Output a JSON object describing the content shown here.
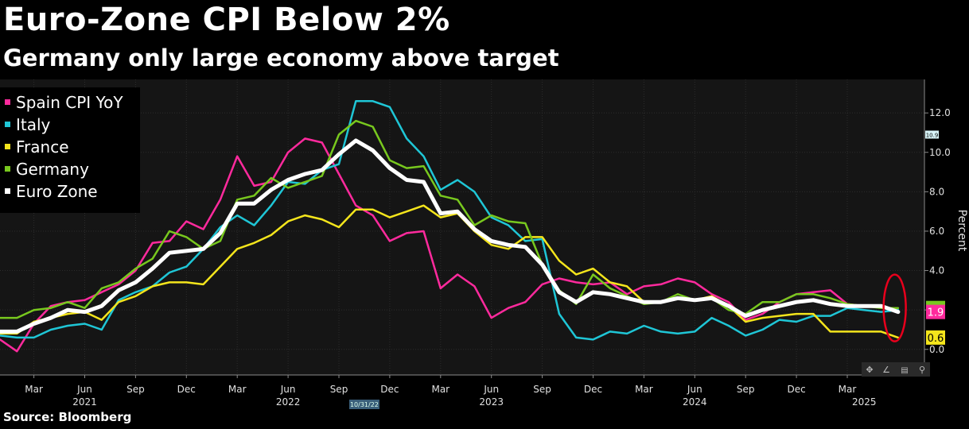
{
  "title": "Euro-Zone CPI Below 2%",
  "subtitle": "Germany only large economy above target",
  "source": "Source: Bloomberg",
  "chart_data": {
    "type": "line",
    "ylabel": "Percent",
    "ylim": [
      -1.3,
      13.7
    ],
    "y_ticks": [
      0.0,
      2.0,
      4.0,
      6.0,
      8.0,
      10.0,
      12.0
    ],
    "y_tick_labels": [
      "0.0",
      "",
      "4.0",
      "6.0",
      "8.0",
      "10.0",
      "12.0"
    ],
    "x_start_month": "Jan 2021",
    "x_month_count": 54,
    "x_tick_labels": [
      {
        "label": "Mar",
        "month_index": 2
      },
      {
        "label": "Jun",
        "month_index": 5
      },
      {
        "label": "Sep",
        "month_index": 8
      },
      {
        "label": "Dec",
        "month_index": 11
      },
      {
        "label": "Mar",
        "month_index": 14
      },
      {
        "label": "Jun",
        "month_index": 17
      },
      {
        "label": "Sep",
        "month_index": 20
      },
      {
        "label": "Dec",
        "month_index": 23
      },
      {
        "label": "Mar",
        "month_index": 26
      },
      {
        "label": "Jun",
        "month_index": 29
      },
      {
        "label": "Sep",
        "month_index": 32
      },
      {
        "label": "Dec",
        "month_index": 35
      },
      {
        "label": "Mar",
        "month_index": 38
      },
      {
        "label": "Jun",
        "month_index": 41
      },
      {
        "label": "Sep",
        "month_index": 44
      },
      {
        "label": "Dec",
        "month_index": 47
      },
      {
        "label": "Mar",
        "month_index": 50
      }
    ],
    "year_labels": [
      {
        "label": "2021",
        "month_index": 5
      },
      {
        "label": "2022",
        "month_index": 17
      },
      {
        "label": "2023",
        "month_index": 29
      },
      {
        "label": "2024",
        "month_index": 41
      },
      {
        "label": "2025",
        "month_index": 51
      }
    ],
    "date_badge": {
      "label": "10/31/22",
      "month_index": 21.5
    },
    "legend_position": "top-left",
    "grid": true,
    "series": [
      {
        "name": "Spain CPI YoY",
        "color": "#ff2a9d",
        "width": 2.5,
        "values": [
          0.5,
          -0.1,
          1.3,
          2.2,
          2.4,
          2.5,
          2.9,
          3.3,
          4.0,
          5.4,
          5.5,
          6.5,
          6.1,
          7.6,
          9.8,
          8.3,
          8.5,
          10.0,
          10.7,
          10.5,
          8.9,
          7.3,
          6.8,
          5.5,
          5.9,
          6.0,
          3.1,
          3.8,
          3.2,
          1.6,
          2.1,
          2.4,
          3.3,
          3.6,
          3.4,
          3.3,
          3.4,
          2.8,
          3.2,
          3.3,
          3.6,
          3.4,
          2.8,
          2.4,
          1.5,
          1.8,
          2.4,
          2.8,
          2.9,
          3.0,
          2.3,
          2.2,
          2.2,
          1.9
        ]
      },
      {
        "name": "Italy",
        "color": "#1fc6d6",
        "width": 2.5,
        "values": [
          0.7,
          0.6,
          0.6,
          1.0,
          1.2,
          1.3,
          1.0,
          2.5,
          2.9,
          3.2,
          3.9,
          4.2,
          5.1,
          6.2,
          6.8,
          6.3,
          7.3,
          8.5,
          8.4,
          9.1,
          9.4,
          12.6,
          12.6,
          12.3,
          10.7,
          9.8,
          8.1,
          8.6,
          8.0,
          6.7,
          6.3,
          5.5,
          5.6,
          1.8,
          0.6,
          0.5,
          0.9,
          0.8,
          1.2,
          0.9,
          0.8,
          0.9,
          1.6,
          1.2,
          0.7,
          1.0,
          1.5,
          1.4,
          1.7,
          1.7,
          2.1,
          2.0,
          1.9,
          2.0
        ]
      },
      {
        "name": "France",
        "color": "#f4e51c",
        "width": 2.5,
        "values": [
          0.8,
          0.8,
          1.4,
          1.6,
          1.8,
          1.9,
          1.5,
          2.4,
          2.7,
          3.2,
          3.4,
          3.4,
          3.3,
          4.2,
          5.1,
          5.4,
          5.8,
          6.5,
          6.8,
          6.6,
          6.2,
          7.1,
          7.1,
          6.7,
          7.0,
          7.3,
          6.7,
          6.9,
          6.0,
          5.3,
          5.1,
          5.7,
          5.7,
          4.5,
          3.8,
          4.1,
          3.4,
          3.2,
          2.4,
          2.4,
          2.6,
          2.5,
          2.7,
          2.2,
          1.4,
          1.6,
          1.7,
          1.8,
          1.8,
          0.9,
          0.9,
          0.9,
          0.9,
          0.6
        ]
      },
      {
        "name": "Germany",
        "color": "#78c81e",
        "width": 2.5,
        "values": [
          1.6,
          1.6,
          2.0,
          2.1,
          2.4,
          2.1,
          3.1,
          3.4,
          4.1,
          4.6,
          6.0,
          5.7,
          5.1,
          5.5,
          7.6,
          7.8,
          8.7,
          8.2,
          8.5,
          8.8,
          10.9,
          11.6,
          11.3,
          9.6,
          9.2,
          9.3,
          7.8,
          7.6,
          6.3,
          6.8,
          6.5,
          6.4,
          4.3,
          3.0,
          2.3,
          3.8,
          3.1,
          2.7,
          2.3,
          2.4,
          2.8,
          2.5,
          2.6,
          2.0,
          1.8,
          2.4,
          2.4,
          2.8,
          2.8,
          2.6,
          2.3,
          2.2,
          2.1,
          2.1
        ]
      },
      {
        "name": "Euro Zone",
        "color": "#ffffff",
        "width": 5,
        "values": [
          0.9,
          0.9,
          1.3,
          1.6,
          2.0,
          1.9,
          2.2,
          3.0,
          3.4,
          4.1,
          4.9,
          5.0,
          5.1,
          5.9,
          7.4,
          7.4,
          8.1,
          8.6,
          8.9,
          9.1,
          9.9,
          10.6,
          10.1,
          9.2,
          8.6,
          8.5,
          6.9,
          7.0,
          6.1,
          5.5,
          5.3,
          5.2,
          4.3,
          2.9,
          2.4,
          2.9,
          2.8,
          2.6,
          2.4,
          2.4,
          2.6,
          2.5,
          2.6,
          2.2,
          1.7,
          2.0,
          2.2,
          2.4,
          2.5,
          2.3,
          2.2,
          2.2,
          2.2,
          1.9
        ]
      }
    ],
    "end_labels": [
      {
        "text": "2.1",
        "color": "#78c81e",
        "text_color": "#78c81e",
        "value": 2.1
      },
      {
        "text": "1.9",
        "color": "#ff2a9d",
        "text_color": "#ffffff",
        "value": 1.9
      },
      {
        "text": "0.6",
        "color": "#f4e51c",
        "text_color": "#000000",
        "value": 0.6
      }
    ],
    "axis_value_badge": {
      "text": "10.9",
      "value": 10.9
    },
    "highlight_ellipse_month_index": 52.8
  },
  "toolbar_icons": [
    "move-icon",
    "draw-icon",
    "chart-type-icon",
    "zoom-icon"
  ]
}
